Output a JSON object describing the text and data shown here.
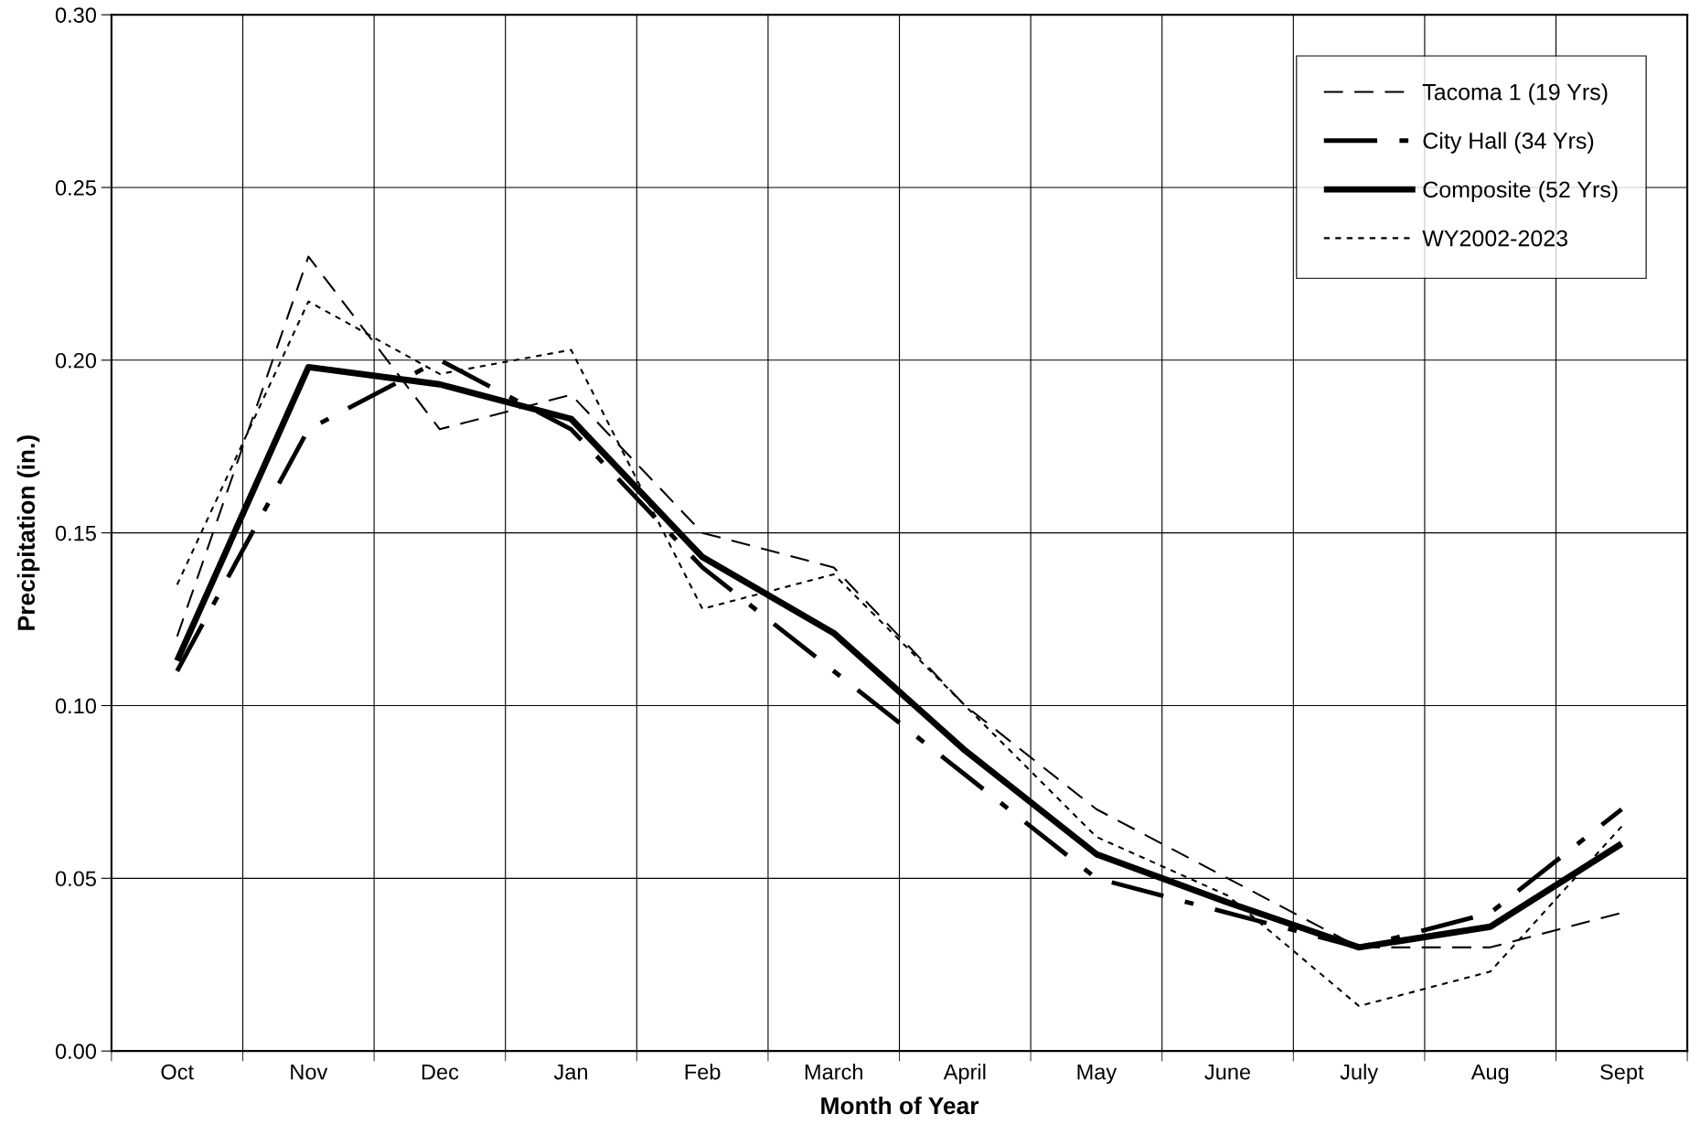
{
  "chart_data": {
    "type": "line",
    "xlabel": "Month of Year",
    "ylabel": "Precipitation (in.)",
    "categories": [
      "Oct",
      "Nov",
      "Dec",
      "Jan",
      "Feb",
      "March",
      "April",
      "May",
      "June",
      "July",
      "Aug",
      "Sept"
    ],
    "ylim": [
      0,
      0.3
    ],
    "yticks": [
      {
        "value": 0,
        "label": "0.00"
      },
      {
        "value": 0.05,
        "label": "0.05"
      },
      {
        "value": 0.1,
        "label": "0.10"
      },
      {
        "value": 0.15,
        "label": "0.15"
      },
      {
        "value": 0.2,
        "label": "0.20"
      },
      {
        "value": 0.25,
        "label": "0.25"
      },
      {
        "value": 0.3,
        "label": "0.30"
      }
    ],
    "grid": true,
    "legend": "top right",
    "series": [
      {
        "name": "Tacoma 1 (19 Yrs)",
        "color": "#000000",
        "line_style": "dashed",
        "values": [
          0.12,
          0.23,
          0.18,
          0.19,
          0.15,
          0.14,
          0.1,
          0.07,
          0.05,
          0.03,
          0.03,
          0.04
        ]
      },
      {
        "name": "City Hall (34 Yrs)",
        "color": "#000000",
        "line_style": "dashdot",
        "values": [
          0.11,
          0.18,
          0.2,
          0.18,
          0.14,
          0.11,
          0.08,
          0.05,
          0.04,
          0.03,
          0.04,
          0.07
        ]
      },
      {
        "name": "Composite (52 Yrs)",
        "color": "#000000",
        "line_style": "solid",
        "values": [
          0.113,
          0.198,
          0.193,
          0.183,
          0.143,
          0.121,
          0.087,
          0.057,
          0.043,
          0.03,
          0.036,
          0.06
        ]
      },
      {
        "name": "WY2002-2023",
        "color": "#000000",
        "line_style": "dotted",
        "values": [
          0.135,
          0.217,
          0.196,
          0.203,
          0.128,
          0.138,
          0.1,
          0.062,
          0.045,
          0.013,
          0.023,
          0.065
        ]
      }
    ]
  }
}
